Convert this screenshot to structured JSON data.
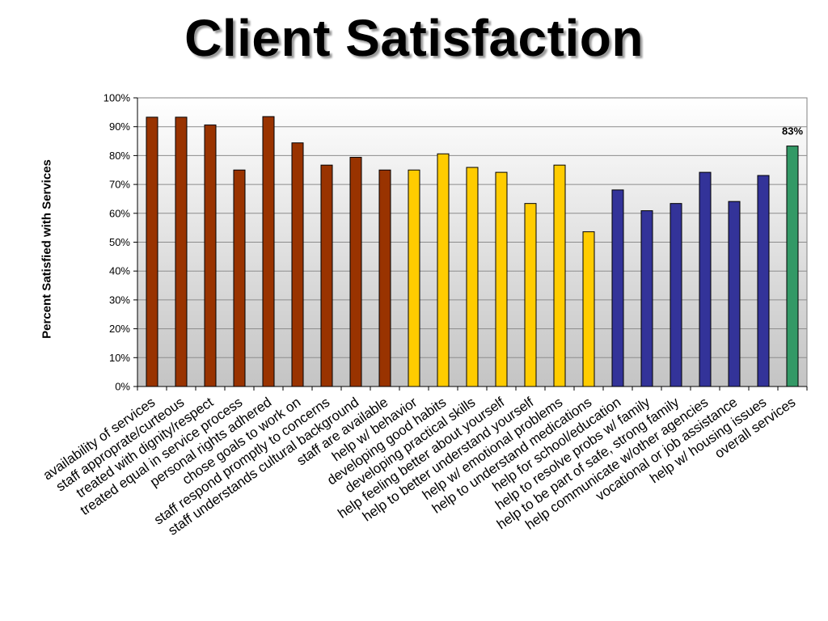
{
  "chart_data": {
    "type": "bar",
    "title": "Client Satisfaction",
    "ylabel": "Percent Satisfied with Services",
    "xlabel": "",
    "ylim": [
      0,
      100
    ],
    "yticks": [
      "0%",
      "10%",
      "20%",
      "30%",
      "40%",
      "50%",
      "60%",
      "70%",
      "80%",
      "90%",
      "100%"
    ],
    "grid": true,
    "categories": [
      "availability of services",
      "staff approprate/curteous",
      "treated with dignity/respect",
      "treated equal in service process",
      "personal rights adhered",
      "chose goals to work on",
      "staff respond promptly to concerns",
      "staff understands cultural background",
      "staff are available",
      "help w/ behavior",
      "developing good habits",
      "developing practical skills",
      "help feeling better about yourself",
      "help to better understand yourself",
      "help w/ emotional problems",
      "help to understand medications",
      "help for school/education",
      "help to resolve probs w/ family",
      "help to be part of safe, strong family",
      "help communicate w/other agencies",
      "vocational or job assistance",
      "help w/ housing issues",
      "overall services"
    ],
    "values": [
      93.3,
      93.3,
      90.6,
      75.0,
      93.5,
      84.4,
      76.7,
      79.4,
      75.0,
      75.0,
      80.6,
      75.9,
      74.2,
      63.4,
      76.7,
      53.6,
      68.1,
      60.9,
      63.4,
      74.2,
      64.1,
      73.1,
      83.3
    ],
    "colors": [
      "#993300",
      "#993300",
      "#993300",
      "#993300",
      "#993300",
      "#993300",
      "#993300",
      "#993300",
      "#993300",
      "#FFCC00",
      "#FFCC00",
      "#FFCC00",
      "#FFCC00",
      "#FFCC00",
      "#FFCC00",
      "#FFCC00",
      "#333399",
      "#333399",
      "#333399",
      "#333399",
      "#333399",
      "#333399",
      "#339966"
    ],
    "data_labels": [
      null,
      null,
      null,
      null,
      null,
      null,
      null,
      null,
      null,
      null,
      null,
      null,
      null,
      null,
      null,
      null,
      null,
      null,
      null,
      null,
      null,
      null,
      "83%"
    ]
  }
}
